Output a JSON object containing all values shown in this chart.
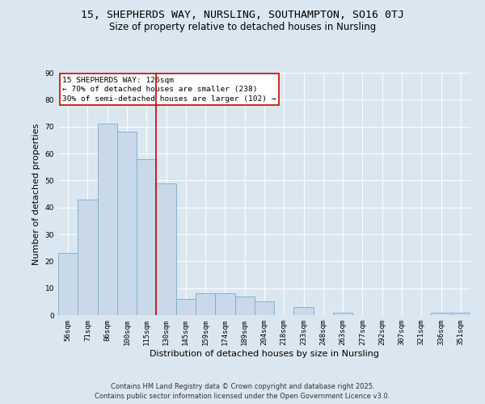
{
  "title_line1": "15, SHEPHERDS WAY, NURSLING, SOUTHAMPTON, SO16 0TJ",
  "title_line2": "Size of property relative to detached houses in Nursling",
  "xlabel": "Distribution of detached houses by size in Nursling",
  "ylabel": "Number of detached properties",
  "categories": [
    "56sqm",
    "71sqm",
    "86sqm",
    "100sqm",
    "115sqm",
    "130sqm",
    "145sqm",
    "159sqm",
    "174sqm",
    "189sqm",
    "204sqm",
    "218sqm",
    "233sqm",
    "248sqm",
    "263sqm",
    "277sqm",
    "292sqm",
    "307sqm",
    "321sqm",
    "336sqm",
    "351sqm"
  ],
  "values": [
    23,
    43,
    71,
    68,
    58,
    49,
    6,
    8,
    8,
    7,
    5,
    0,
    3,
    0,
    1,
    0,
    0,
    0,
    0,
    1,
    1
  ],
  "bar_color": "#c9d9ea",
  "bar_edge_color": "#7aaac8",
  "vline_x": 4.5,
  "vline_color": "#cc0000",
  "annotation_text": "15 SHEPHERDS WAY: 126sqm\n← 70% of detached houses are smaller (238)\n30% of semi-detached houses are larger (102) →",
  "annotation_box_color": "#cc0000",
  "background_color": "#dbe7f0",
  "plot_bg_color": "#dbe7f0",
  "ylim": [
    0,
    90
  ],
  "yticks": [
    0,
    10,
    20,
    30,
    40,
    50,
    60,
    70,
    80,
    90
  ],
  "footer_line1": "Contains HM Land Registry data © Crown copyright and database right 2025.",
  "footer_line2": "Contains public sector information licensed under the Open Government Licence v3.0.",
  "title_fontsize": 9.5,
  "subtitle_fontsize": 8.5,
  "axis_label_fontsize": 8,
  "tick_fontsize": 6.5,
  "annotation_fontsize": 6.8,
  "footer_fontsize": 6.0
}
